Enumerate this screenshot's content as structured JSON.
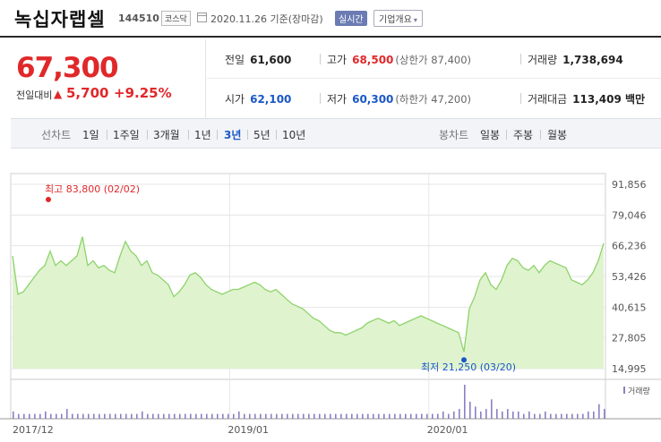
{
  "header": {
    "company_name": "녹십자랩셀",
    "code": "144510",
    "market": "코스닥",
    "date_text": "2020.11.26 기준(장마감)",
    "realtime_label": "실시간",
    "overview_label": "기업개요",
    "overview_chevron": "▾"
  },
  "price_panel": {
    "price": "67,300",
    "prev_label": "전일대비",
    "direction_icon": "▲",
    "change": "5,700",
    "rate": "+9.25%"
  },
  "stats": {
    "prev_close": {
      "label": "전일",
      "value": "61,600"
    },
    "high": {
      "label": "고가",
      "value": "68,500",
      "sub": "(상한가 87,400)"
    },
    "volume": {
      "label": "거래량",
      "value": "1,738,694"
    },
    "open": {
      "label": "시가",
      "value": "62,100"
    },
    "low": {
      "label": "저가",
      "value": "60,300",
      "sub": "(하한가 47,200)"
    },
    "amount": {
      "label": "거래대금",
      "value": "113,409 백만"
    }
  },
  "tabs": {
    "line_label": "선차트",
    "line_tabs": [
      "1일",
      "1주일",
      "3개월",
      "1년",
      "3년",
      "5년",
      "10년"
    ],
    "active_tab": "3년",
    "candle_label": "봉차트",
    "candle_tabs": [
      "일봉",
      "주봉",
      "월봉"
    ]
  },
  "colors": {
    "up": "#e0282a",
    "down": "#1a57c6",
    "line": "#8ed36a",
    "fill": "#dff3cf",
    "volume_bar": "#8b7fc4"
  },
  "chart_data": {
    "type": "area",
    "y_ticks": [
      "91,856",
      "79,046",
      "66,236",
      "53,426",
      "40,615",
      "27,805",
      "14,995"
    ],
    "ylim": [
      14995,
      91856
    ],
    "x_labels": [
      "2017/12",
      "2019/01",
      "2020/01"
    ],
    "high_label": "최고 83,800 (02/02)",
    "low_label": "최저 21,250 (03/20)",
    "volume_label": "거래량",
    "grid": true,
    "series_values": [
      62000,
      46000,
      47000,
      50000,
      53000,
      56000,
      58000,
      64000,
      58000,
      60000,
      58000,
      60000,
      62000,
      70000,
      58000,
      60000,
      57000,
      58000,
      56000,
      55000,
      62000,
      68000,
      64000,
      62000,
      58000,
      60000,
      55000,
      54000,
      52000,
      50000,
      45000,
      47000,
      50000,
      54000,
      55000,
      53000,
      50000,
      48000,
      47000,
      46000,
      47000,
      48000,
      48000,
      49000,
      50000,
      51000,
      50000,
      48000,
      47000,
      48000,
      46000,
      44000,
      42000,
      41000,
      40000,
      38000,
      36000,
      35000,
      33000,
      31000,
      30000,
      30000,
      29000,
      30000,
      31000,
      32000,
      34000,
      35000,
      36000,
      35000,
      34000,
      35000,
      33000,
      34000,
      35000,
      36000,
      37000,
      36000,
      35000,
      34000,
      33000,
      32000,
      31000,
      30000,
      22000,
      40000,
      45000,
      52000,
      55000,
      50000,
      48000,
      52000,
      58000,
      61000,
      60000,
      57000,
      56000,
      58000,
      55000,
      58000,
      60000,
      59000,
      58000,
      57000,
      52000,
      51000,
      50000,
      52000,
      55000,
      60000,
      67300
    ],
    "volume_values": [
      3,
      2,
      2,
      2,
      2,
      2,
      3,
      2,
      2,
      2,
      4,
      2,
      2,
      2,
      2,
      2,
      2,
      2,
      2,
      2,
      2,
      2,
      2,
      2,
      3,
      2,
      2,
      2,
      2,
      2,
      2,
      2,
      2,
      2,
      2,
      2,
      2,
      2,
      2,
      2,
      2,
      2,
      3,
      2,
      2,
      2,
      2,
      2,
      2,
      2,
      2,
      2,
      2,
      2,
      2,
      2,
      2,
      2,
      2,
      2,
      2,
      2,
      2,
      2,
      2,
      2,
      2,
      2,
      2,
      2,
      2,
      2,
      2,
      2,
      2,
      2,
      2,
      2,
      2,
      2,
      3,
      2,
      3,
      4,
      14,
      7,
      5,
      3,
      4,
      8,
      4,
      3,
      4,
      3,
      3,
      2,
      3,
      2,
      2,
      3,
      2,
      2,
      2,
      2,
      2,
      2,
      2,
      3,
      3,
      6,
      4
    ]
  }
}
